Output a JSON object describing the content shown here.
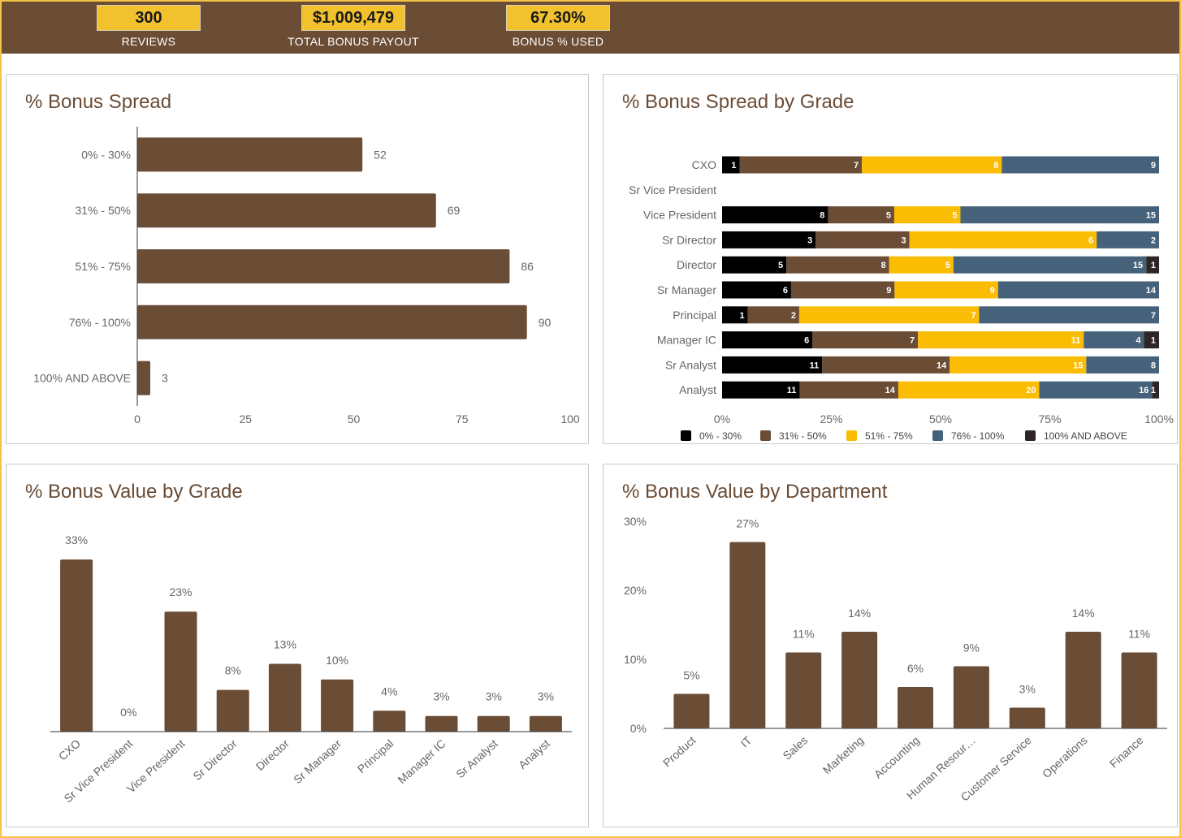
{
  "kpis": [
    {
      "value": "300",
      "label": "REVIEWS"
    },
    {
      "value": "$1,009,479",
      "label": "TOTAL BONUS PAYOUT"
    },
    {
      "value": "67.30%",
      "label": "BONUS % USED"
    }
  ],
  "colors": {
    "brown": "#6b4c35",
    "gold": "#f2c12e",
    "black": "#000000",
    "yellow": "#fbbc04",
    "slate": "#46627a",
    "dark": "#2e2626"
  },
  "chart_data": [
    {
      "type": "bar",
      "orientation": "horizontal",
      "title": "% Bonus Spread",
      "categories": [
        "0% - 30%",
        "31% - 50%",
        "51% - 75%",
        "76% - 100%",
        "100% AND ABOVE"
      ],
      "values": [
        52,
        69,
        86,
        90,
        3
      ],
      "xlim": [
        0,
        100
      ],
      "xticks": [
        "0",
        "25",
        "50",
        "75",
        "100"
      ],
      "color": "#6b4c35"
    },
    {
      "type": "bar",
      "orientation": "horizontal",
      "stacked": "percent",
      "title": "% Bonus Spread by Grade",
      "categories": [
        "CXO",
        "Sr Vice President",
        "Vice President",
        "Sr Director",
        "Director",
        "Sr Manager",
        "Principal",
        "Manager IC",
        "Sr Analyst",
        "Analyst"
      ],
      "series": [
        {
          "name": "0% - 30%",
          "color": "#000000",
          "values": [
            1,
            0,
            8,
            3,
            5,
            6,
            1,
            6,
            11,
            11
          ]
        },
        {
          "name": "31% - 50%",
          "color": "#6b4c35",
          "values": [
            7,
            0,
            5,
            3,
            8,
            9,
            2,
            7,
            14,
            14
          ]
        },
        {
          "name": "51% - 75%",
          "color": "#fbbc04",
          "values": [
            8,
            0,
            5,
            6,
            5,
            9,
            7,
            11,
            15,
            20
          ]
        },
        {
          "name": "76% - 100%",
          "color": "#46627a",
          "values": [
            9,
            0,
            15,
            2,
            15,
            14,
            7,
            4,
            8,
            16
          ]
        },
        {
          "name": "100% AND ABOVE",
          "color": "#2e2626",
          "values": [
            0,
            0,
            0,
            0,
            1,
            0,
            0,
            1,
            0,
            1
          ]
        }
      ],
      "xticks": [
        "0%",
        "25%",
        "50%",
        "75%",
        "100%"
      ],
      "legend": "bottom"
    },
    {
      "type": "bar",
      "title": "% Bonus Value by Grade",
      "categories": [
        "CXO",
        "Sr Vice President",
        "Vice President",
        "Sr Director",
        "Director",
        "Sr Manager",
        "Principal",
        "Manager IC",
        "Sr Analyst",
        "Analyst"
      ],
      "values": [
        33,
        0,
        23,
        8,
        13,
        10,
        4,
        3,
        3,
        3
      ],
      "labels": [
        "33%",
        "0%",
        "23%",
        "8%",
        "13%",
        "10%",
        "4%",
        "3%",
        "3%",
        "3%"
      ],
      "ylim": [
        0,
        33
      ],
      "color": "#6b4c35"
    },
    {
      "type": "bar",
      "title": "% Bonus Value by Department",
      "categories": [
        "Product",
        "IT",
        "Sales",
        "Marketing",
        "Accounting",
        "Human Resour…",
        "Customer Service",
        "Operations",
        "Finance"
      ],
      "values": [
        5,
        27,
        11,
        14,
        6,
        9,
        3,
        14,
        11
      ],
      "labels": [
        "5%",
        "27%",
        "11%",
        "14%",
        "6%",
        "9%",
        "3%",
        "14%",
        "11%"
      ],
      "ylim": [
        0,
        30
      ],
      "yticks": [
        "0%",
        "10%",
        "20%",
        "30%"
      ],
      "color": "#6b4c35"
    }
  ]
}
